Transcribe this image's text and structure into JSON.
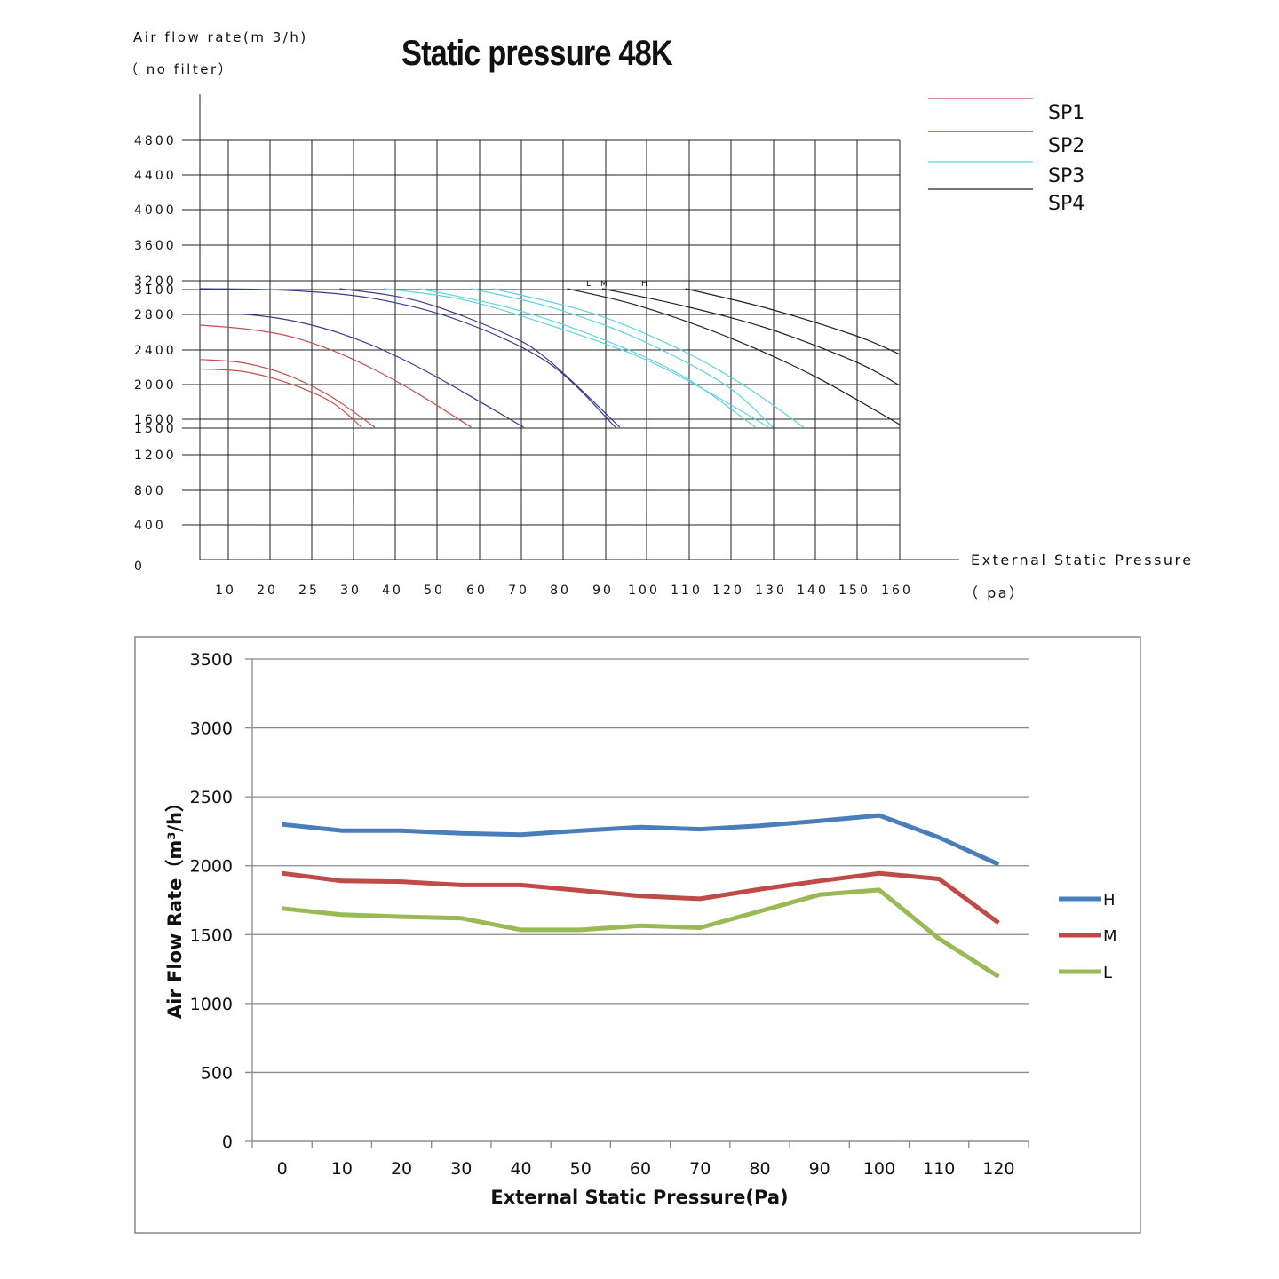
{
  "top_chart": {
    "title": "Static pressure 48K",
    "y_label_line1": "Air flow rate(m 3/h)",
    "y_label_line2": "（ no filter）",
    "x_label_line1": "External Static Pressure",
    "x_label_line2": "（ pa）",
    "speed_markers": [
      "L",
      "M",
      "H"
    ]
  },
  "bottom_chart": {
    "y_label": "Air Flow Rate（m³/h）",
    "x_label": "External Static Pressure(Pa)"
  },
  "chart_data": [
    {
      "type": "line",
      "title": "Static pressure 48K",
      "xlabel": "External Static Pressure （ pa）",
      "ylabel": "Air flow rate(m 3/h) （ no filter）",
      "x_tick_labels": [
        "10",
        "20",
        "25",
        "30",
        "40",
        "50",
        "60",
        "70",
        "80",
        "90",
        "100",
        "110",
        "120",
        "130",
        "140",
        "150",
        "160"
      ],
      "y_tick_labels": [
        "4800",
        "4400",
        "4000",
        "3600",
        "3200",
        "3100",
        "2800",
        "2400",
        "2000",
        "1600",
        "1500",
        "1200",
        "800",
        "400",
        "0"
      ],
      "ylim": [
        0,
        4800
      ],
      "grid": true,
      "legend_position": "top-right",
      "legend": [
        {
          "name": "SP1",
          "color": "#c0504d"
        },
        {
          "name": "SP2",
          "color": "#3a3a8c"
        },
        {
          "name": "SP3",
          "color": "#5fd3de"
        },
        {
          "name": "SP4",
          "color": "#222222"
        }
      ],
      "series": [
        {
          "name": "SP1",
          "curves": [
            {
              "x": [
                0,
                10,
                20,
                30,
                37
              ],
              "y": [
                2180,
                2150,
                2020,
                1800,
                1510
              ]
            },
            {
              "x": [
                0,
                10,
                20,
                30,
                40
              ],
              "y": [
                2290,
                2250,
                2110,
                1860,
                1510
              ]
            },
            {
              "x": [
                0,
                10,
                20,
                30,
                40,
                50,
                62
              ],
              "y": [
                2680,
                2640,
                2560,
                2400,
                2170,
                1890,
                1510
              ]
            }
          ]
        },
        {
          "name": "SP2",
          "curves": [
            {
              "x": [
                0,
                10,
                20,
                30,
                40,
                50,
                60,
                74
              ],
              "y": [
                2800,
                2800,
                2740,
                2620,
                2440,
                2200,
                1920,
                1510
              ]
            },
            {
              "x": [
                0,
                20,
                40,
                60,
                80,
                95
              ],
              "y": [
                3110,
                3090,
                2990,
                2720,
                2240,
                1510
              ]
            },
            {
              "x": [
                32,
                50,
                70,
                80,
                96
              ],
              "y": [
                3110,
                2960,
                2580,
                2270,
                1510
              ]
            }
          ]
        },
        {
          "name": "SP3",
          "curves": [
            {
              "x": [
                42,
                60,
                80,
                100,
                115,
                130
              ],
              "y": [
                3110,
                2980,
                2680,
                2330,
                1950,
                1510
              ]
            },
            {
              "x": [
                50,
                70,
                90,
                110,
                127
              ],
              "y": [
                3110,
                2890,
                2560,
                2110,
                1510
              ]
            },
            {
              "x": [
                62,
                80,
                100,
                120,
                131
              ],
              "y": [
                3110,
                2890,
                2530,
                2000,
                1510
              ]
            },
            {
              "x": [
                67,
                90,
                110,
                125,
                138
              ],
              "y": [
                3110,
                2810,
                2400,
                1970,
                1510
              ]
            }
          ]
        },
        {
          "name": "SP4",
          "curves": [
            {
              "x": [
                84,
                100,
                120,
                140,
                160
              ],
              "y": [
                3110,
                2910,
                2560,
                2110,
                1540
              ]
            },
            {
              "x": [
                92,
                110,
                130,
                150,
                160
              ],
              "y": [
                3110,
                2910,
                2640,
                2260,
                1990
              ]
            },
            {
              "x": [
                111,
                130,
                150,
                160
              ],
              "y": [
                3110,
                2870,
                2560,
                2350
              ]
            }
          ]
        }
      ]
    },
    {
      "type": "line",
      "xlabel": "External Static Pressure(Pa)",
      "ylabel": "Air Flow Rate（m³/h）",
      "x": [
        0,
        10,
        20,
        30,
        40,
        50,
        60,
        70,
        80,
        90,
        100,
        110,
        120
      ],
      "ylim": [
        0,
        3500
      ],
      "y_ticks": [
        0,
        500,
        1000,
        1500,
        2000,
        2500,
        3000,
        3500
      ],
      "grid": true,
      "legend_position": "right",
      "series": [
        {
          "name": "H",
          "color": "#4a7ebb",
          "values": [
            2300,
            2255,
            2255,
            2235,
            2225,
            2255,
            2280,
            2265,
            2290,
            2325,
            2365,
            2205,
            2010
          ]
        },
        {
          "name": "M",
          "color": "#be4b48",
          "values": [
            1945,
            1890,
            1885,
            1860,
            1860,
            1820,
            1780,
            1760,
            1830,
            1890,
            1945,
            1905,
            1585
          ]
        },
        {
          "name": "L",
          "color": "#98b954",
          "values": [
            1690,
            1645,
            1630,
            1620,
            1535,
            1535,
            1565,
            1550,
            1670,
            1790,
            1825,
            1470,
            1195
          ]
        }
      ]
    }
  ]
}
